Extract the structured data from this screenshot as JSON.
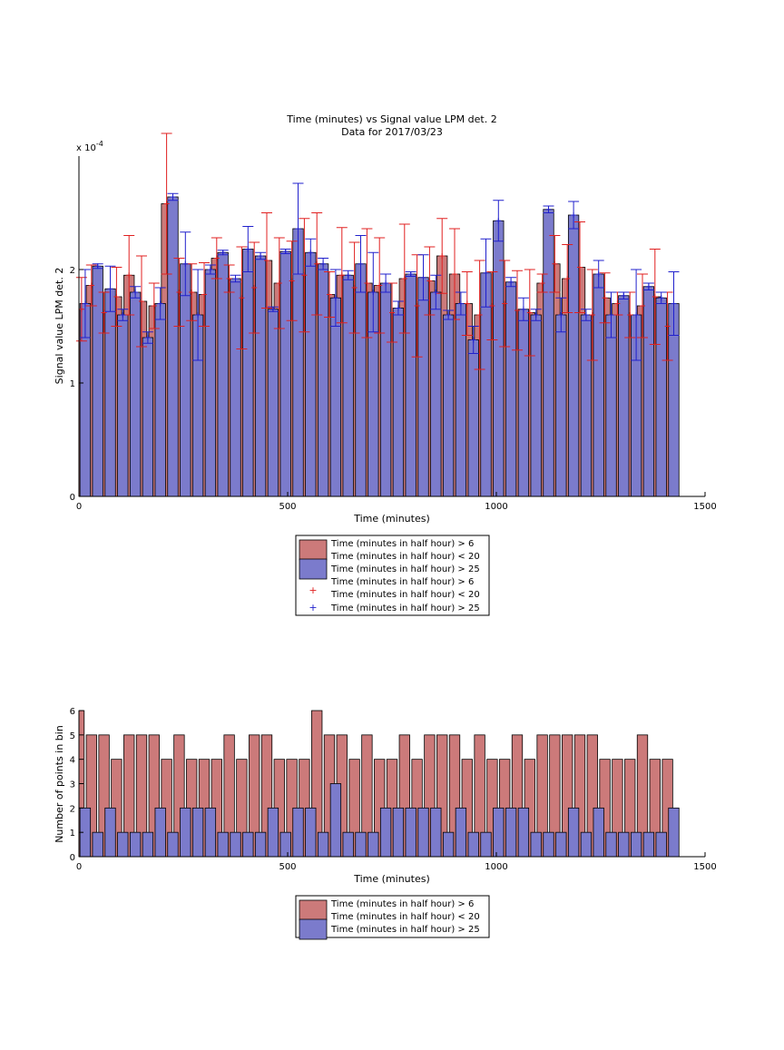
{
  "chart_data": [
    {
      "type": "bar",
      "title": "Time (minutes) vs Signal value LPM det. 2",
      "subtitle": "Data for 2017/03/23",
      "xlabel": "Time (minutes)",
      "ylabel": "Signal value LPM det. 2",
      "exponent_label": "x 10",
      "exponent_power": "-4",
      "xlim": [
        0,
        1500
      ],
      "ylim": [
        0,
        3.0
      ],
      "xticks": [
        "0",
        "500",
        "1000",
        "1500"
      ],
      "yticks": [
        "0",
        "1",
        "2"
      ],
      "legend": [
        {
          "label": "Time (minutes in half hour) > 6",
          "label2": "Time (minutes in half hour) < 20",
          "kind": "bar",
          "color": "#cc7a7a"
        },
        {
          "label": "Time (minutes in half hour) > 25",
          "kind": "bar",
          "color": "#7b7bcc"
        },
        {
          "label": "Time (minutes in half hour) > 6",
          "label2": "Time (minutes in half hour) < 20",
          "kind": "marker",
          "color": "#e02020"
        },
        {
          "label": "Time (minutes in half hour) > 25",
          "kind": "marker",
          "color": "#2020cc"
        }
      ],
      "series": [
        {
          "name": "Time (minutes in half hour) > 6 / < 20",
          "color": "#cc7a7a",
          "err_color": "#e02020",
          "x": [
            0,
            30,
            60,
            90,
            120,
            150,
            180,
            210,
            240,
            270,
            300,
            330,
            360,
            390,
            420,
            450,
            480,
            510,
            540,
            570,
            600,
            630,
            660,
            690,
            720,
            750,
            780,
            810,
            840,
            870,
            900,
            930,
            960,
            990,
            1020,
            1050,
            1080,
            1110,
            1140,
            1170,
            1200,
            1230,
            1260,
            1290,
            1320,
            1350,
            1380,
            1410
          ],
          "values": [
            1.65,
            1.86,
            1.62,
            1.76,
            1.95,
            1.72,
            1.68,
            2.58,
            1.8,
            1.8,
            1.78,
            2.1,
            1.92,
            1.75,
            1.84,
            2.08,
            1.88,
            1.9,
            1.95,
            2.05,
            1.78,
            1.95,
            1.84,
            1.88,
            1.86,
            1.62,
            1.92,
            1.68,
            1.9,
            2.12,
            1.96,
            1.7,
            1.6,
            1.68,
            1.7,
            1.64,
            1.62,
            1.88,
            2.05,
            1.92,
            2.02,
            1.6,
            1.75,
            1.7,
            1.6,
            1.68,
            1.76,
            1.5
          ],
          "err": [
            0.28,
            0.18,
            0.18,
            0.26,
            0.35,
            0.4,
            0.2,
            0.62,
            0.3,
            0.25,
            0.28,
            0.18,
            0.12,
            0.45,
            0.4,
            0.42,
            0.4,
            0.35,
            0.5,
            0.45,
            0.2,
            0.42,
            0.4,
            0.48,
            0.42,
            0.26,
            0.48,
            0.45,
            0.3,
            0.33,
            0.4,
            0.28,
            0.48,
            0.3,
            0.38,
            0.35,
            0.38,
            0.08,
            0.25,
            0.3,
            0.4,
            0.4,
            0.22,
            0.1,
            0.2,
            0.28,
            0.42,
            0.3
          ]
        },
        {
          "name": "Time (minutes in half hour) > 25",
          "color": "#7b7bcc",
          "err_color": "#2020cc",
          "x": [
            15,
            45,
            75,
            105,
            135,
            165,
            195,
            225,
            255,
            285,
            315,
            345,
            375,
            405,
            435,
            465,
            495,
            525,
            555,
            585,
            615,
            645,
            675,
            705,
            735,
            765,
            795,
            825,
            855,
            885,
            915,
            945,
            975,
            1005,
            1035,
            1065,
            1095,
            1125,
            1155,
            1185,
            1215,
            1245,
            1275,
            1305,
            1335,
            1365,
            1395,
            1425
          ],
          "values": [
            1.7,
            2.03,
            1.83,
            1.6,
            1.8,
            1.4,
            1.7,
            2.64,
            2.05,
            1.6,
            2.0,
            2.15,
            1.92,
            2.18,
            2.12,
            1.65,
            2.16,
            2.36,
            2.15,
            2.05,
            1.75,
            1.95,
            2.05,
            1.8,
            1.88,
            1.66,
            1.96,
            1.93,
            1.8,
            1.6,
            1.7,
            1.38,
            1.97,
            2.43,
            1.89,
            1.65,
            1.6,
            2.53,
            1.6,
            2.48,
            1.6,
            1.96,
            1.6,
            1.77,
            1.6,
            1.85,
            1.75,
            1.7
          ],
          "err": [
            0.3,
            0.02,
            0.2,
            0.05,
            0.05,
            0.05,
            0.14,
            0.03,
            0.28,
            0.4,
            0.04,
            0.02,
            0.03,
            0.2,
            0.03,
            0.02,
            0.02,
            0.4,
            0.12,
            0.05,
            0.25,
            0.04,
            0.25,
            0.35,
            0.08,
            0.06,
            0.02,
            0.2,
            0.15,
            0.04,
            0.1,
            0.12,
            0.3,
            0.18,
            0.04,
            0.1,
            0.05,
            0.03,
            0.15,
            0.12,
            0.05,
            0.12,
            0.2,
            0.03,
            0.4,
            0.03,
            0.05,
            0.28
          ]
        }
      ]
    },
    {
      "type": "bar",
      "xlabel": "Time (minutes)",
      "ylabel": "Number of points in bin",
      "xlim": [
        0,
        1500
      ],
      "ylim": [
        0,
        6
      ],
      "xticks": [
        "0",
        "500",
        "1000",
        "1500"
      ],
      "yticks": [
        "0",
        "1",
        "2",
        "3",
        "4",
        "5",
        "6"
      ],
      "legend": [
        {
          "label": "Time (minutes in half hour) > 6",
          "label2": "Time (minutes in half hour) < 20",
          "kind": "bar",
          "color": "#cc7a7a"
        },
        {
          "label": "Time (minutes in half hour) > 25",
          "kind": "bar",
          "color": "#7b7bcc"
        }
      ],
      "series": [
        {
          "name": "Time (minutes in half hour) > 6 / < 20",
          "color": "#cc7a7a",
          "x": [
            0,
            30,
            60,
            90,
            120,
            150,
            180,
            210,
            240,
            270,
            300,
            330,
            360,
            390,
            420,
            450,
            480,
            510,
            540,
            570,
            600,
            630,
            660,
            690,
            720,
            750,
            780,
            810,
            840,
            870,
            900,
            930,
            960,
            990,
            1020,
            1050,
            1080,
            1110,
            1140,
            1170,
            1200,
            1230,
            1260,
            1290,
            1320,
            1350,
            1380,
            1410
          ],
          "values": [
            6,
            5,
            5,
            4,
            5,
            5,
            5,
            4,
            5,
            4,
            4,
            4,
            5,
            4,
            5,
            5,
            4,
            4,
            4,
            6,
            5,
            5,
            4,
            5,
            4,
            4,
            5,
            4,
            5,
            5,
            5,
            4,
            5,
            4,
            4,
            5,
            4,
            5,
            5,
            5,
            5,
            5,
            4,
            4,
            4,
            5,
            4,
            4
          ]
        },
        {
          "name": "Time (minutes in half hour) > 25",
          "color": "#7b7bcc",
          "x": [
            15,
            45,
            75,
            105,
            135,
            165,
            195,
            225,
            255,
            285,
            315,
            345,
            375,
            405,
            435,
            465,
            495,
            525,
            555,
            585,
            615,
            645,
            675,
            705,
            735,
            765,
            795,
            825,
            855,
            885,
            915,
            945,
            975,
            1005,
            1035,
            1065,
            1095,
            1125,
            1155,
            1185,
            1215,
            1245,
            1275,
            1305,
            1335,
            1365,
            1395,
            1425
          ],
          "values": [
            2,
            1,
            2,
            1,
            1,
            1,
            2,
            1,
            2,
            2,
            2,
            1,
            1,
            1,
            1,
            2,
            1,
            2,
            2,
            1,
            3,
            1,
            1,
            1,
            2,
            2,
            2,
            2,
            2,
            1,
            2,
            1,
            1,
            2,
            2,
            2,
            1,
            1,
            1,
            2,
            1,
            2,
            1,
            1,
            1,
            1,
            1,
            2
          ]
        }
      ]
    }
  ]
}
